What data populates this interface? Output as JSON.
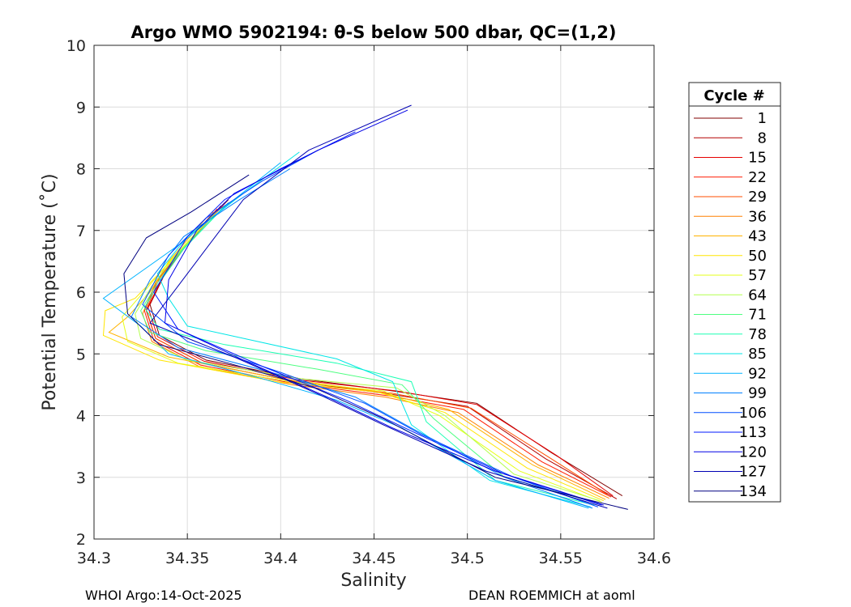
{
  "chart_data": {
    "type": "line",
    "title": "Argo WMO 5902194: θ-S below 500 dbar,  QC=(1,2)",
    "xlabel": "Salinity",
    "ylabel": "Potential Temperature (˚C)",
    "xlim": [
      34.3,
      34.6
    ],
    "ylim": [
      2,
      10
    ],
    "xticks": [
      "34.3",
      "34.35",
      "34.4",
      "34.45",
      "34.5",
      "34.55",
      "34.6"
    ],
    "yticks": [
      "2",
      "3",
      "4",
      "5",
      "6",
      "7",
      "8",
      "9",
      "10"
    ],
    "grid": true,
    "legend": {
      "title": "Cycle #",
      "placement": "right",
      "entries": [
        {
          "label": "1",
          "color": "#800000"
        },
        {
          "label": "8",
          "color": "#b30000"
        },
        {
          "label": "15",
          "color": "#e60000"
        },
        {
          "label": "22",
          "color": "#ff1a00"
        },
        {
          "label": "29",
          "color": "#ff4d00"
        },
        {
          "label": "36",
          "color": "#ff8000"
        },
        {
          "label": "43",
          "color": "#ffb300"
        },
        {
          "label": "50",
          "color": "#ffe600"
        },
        {
          "label": "57",
          "color": "#e6ff1a"
        },
        {
          "label": "64",
          "color": "#b3ff4d"
        },
        {
          "label": "71",
          "color": "#4dff80"
        },
        {
          "label": "78",
          "color": "#1affb3"
        },
        {
          "label": "85",
          "color": "#00e6e6"
        },
        {
          "label": "92",
          "color": "#00b3ff"
        },
        {
          "label": "99",
          "color": "#0080ff"
        },
        {
          "label": "106",
          "color": "#004dff"
        },
        {
          "label": "113",
          "color": "#001aff"
        },
        {
          "label": "120",
          "color": "#0000e6"
        },
        {
          "label": "127",
          "color": "#0000b3"
        },
        {
          "label": "134",
          "color": "#000080"
        }
      ]
    },
    "series": [
      {
        "name": "1",
        "color": "#800000",
        "x": [
          34.372,
          34.35,
          34.338,
          34.33,
          34.335,
          34.36,
          34.41,
          34.46,
          34.505,
          34.545,
          34.583
        ],
        "y": [
          7.5,
          6.8,
          6.3,
          5.8,
          5.3,
          4.9,
          4.6,
          4.4,
          4.2,
          3.4,
          2.7
        ]
      },
      {
        "name": "8",
        "color": "#b30000",
        "x": [
          34.368,
          34.348,
          34.336,
          34.328,
          34.333,
          34.358,
          34.408,
          34.458,
          34.5,
          34.542,
          34.58
        ],
        "y": [
          7.4,
          6.7,
          6.2,
          5.7,
          5.25,
          4.85,
          4.55,
          4.35,
          4.15,
          3.3,
          2.65
        ]
      },
      {
        "name": "15",
        "color": "#e60000",
        "x": [
          34.37,
          34.349,
          34.337,
          34.329,
          34.334,
          34.359,
          34.409,
          34.462,
          34.505,
          34.548,
          34.578
        ],
        "y": [
          7.45,
          6.75,
          6.25,
          5.75,
          5.28,
          4.88,
          4.58,
          4.4,
          4.18,
          3.35,
          2.7
        ]
      },
      {
        "name": "22",
        "color": "#ff1a00",
        "x": [
          34.366,
          34.346,
          34.334,
          34.327,
          34.332,
          34.357,
          34.407,
          34.458,
          34.498,
          34.54,
          34.577
        ],
        "y": [
          7.35,
          6.65,
          6.2,
          5.7,
          5.22,
          4.82,
          4.52,
          4.32,
          4.1,
          3.25,
          2.68
        ]
      },
      {
        "name": "29",
        "color": "#ff4d00",
        "x": [
          34.369,
          34.347,
          34.335,
          34.328,
          34.333,
          34.358,
          34.408,
          34.46,
          34.502,
          34.545,
          34.575
        ],
        "y": [
          7.4,
          6.7,
          6.22,
          5.72,
          5.25,
          4.85,
          4.55,
          4.36,
          4.12,
          3.3,
          2.72
        ]
      },
      {
        "name": "36",
        "color": "#ff8000",
        "x": [
          34.364,
          34.345,
          34.333,
          34.326,
          34.331,
          34.356,
          34.406,
          34.456,
          34.495,
          34.538,
          34.576
        ],
        "y": [
          7.3,
          6.6,
          6.15,
          5.65,
          5.2,
          4.8,
          4.5,
          4.3,
          4.05,
          3.2,
          2.66
        ]
      },
      {
        "name": "43",
        "color": "#ffb300",
        "x": [
          34.36,
          34.34,
          34.33,
          34.318,
          34.308,
          34.34,
          34.4,
          34.45,
          34.49,
          34.535,
          34.574
        ],
        "y": [
          7.2,
          6.5,
          6.0,
          5.6,
          5.35,
          4.95,
          4.6,
          4.4,
          4.1,
          3.2,
          2.64
        ]
      },
      {
        "name": "50",
        "color": "#ffe600",
        "x": [
          34.362,
          34.338,
          34.322,
          34.306,
          34.305,
          34.335,
          34.398,
          34.452,
          34.488,
          34.532,
          34.573
        ],
        "y": [
          7.2,
          6.4,
          5.9,
          5.7,
          5.3,
          4.9,
          4.55,
          4.38,
          4.05,
          3.15,
          2.62
        ]
      },
      {
        "name": "57",
        "color": "#e6ff1a",
        "x": [
          34.365,
          34.342,
          34.328,
          34.315,
          34.318,
          34.345,
          34.405,
          34.455,
          34.485,
          34.528,
          34.572
        ],
        "y": [
          7.3,
          6.55,
          6.05,
          5.6,
          5.2,
          4.85,
          4.55,
          4.4,
          4.0,
          3.1,
          2.6
        ]
      },
      {
        "name": "64",
        "color": "#b3ff4d",
        "x": [
          34.367,
          34.344,
          34.331,
          34.322,
          34.325,
          34.35,
          34.41,
          34.462,
          34.488,
          34.525,
          34.571
        ],
        "y": [
          7.35,
          6.6,
          6.1,
          5.65,
          5.25,
          4.9,
          4.6,
          4.45,
          4.0,
          3.05,
          2.62
        ]
      },
      {
        "name": "71",
        "color": "#4dff80",
        "x": [
          34.37,
          34.346,
          34.334,
          34.325,
          34.33,
          34.36,
          34.42,
          34.465,
          34.482,
          34.52,
          34.57
        ],
        "y": [
          7.4,
          6.65,
          6.15,
          5.7,
          5.35,
          5.05,
          4.75,
          4.5,
          3.95,
          3.0,
          2.58
        ]
      },
      {
        "name": "78",
        "color": "#1affb3",
        "x": [
          34.372,
          34.348,
          34.336,
          34.327,
          34.335,
          34.37,
          34.43,
          34.47,
          34.478,
          34.515,
          34.568
        ],
        "y": [
          7.45,
          6.7,
          6.2,
          5.75,
          5.4,
          5.15,
          4.85,
          4.55,
          3.9,
          2.95,
          2.55
        ]
      },
      {
        "name": "85",
        "color": "#00e6e6",
        "x": [
          34.41,
          34.38,
          34.35,
          34.334,
          34.34,
          34.35,
          34.43,
          34.46,
          34.47,
          34.512,
          34.566
        ],
        "y": [
          8.27,
          7.6,
          6.9,
          6.3,
          5.9,
          5.45,
          4.92,
          4.55,
          3.85,
          2.95,
          2.52
        ]
      },
      {
        "name": "92",
        "color": "#00b3ff",
        "x": [
          34.4,
          34.375,
          34.347,
          34.305,
          34.325,
          34.34,
          34.39,
          34.43,
          34.465,
          34.515,
          34.565
        ],
        "y": [
          8.1,
          7.5,
          6.8,
          5.9,
          5.45,
          5.0,
          4.6,
          4.25,
          3.8,
          2.95,
          2.5
        ]
      },
      {
        "name": "99",
        "color": "#0080ff",
        "x": [
          34.405,
          34.378,
          34.348,
          34.33,
          34.32,
          34.345,
          34.395,
          34.44,
          34.47,
          34.52,
          34.567
        ],
        "y": [
          8.0,
          7.5,
          6.9,
          6.2,
          5.6,
          5.1,
          4.7,
          4.3,
          3.8,
          3.0,
          2.5
        ]
      },
      {
        "name": "106",
        "color": "#004dff",
        "x": [
          34.42,
          34.39,
          34.36,
          34.34,
          34.326,
          34.35,
          34.4,
          34.445,
          34.475,
          34.525,
          34.57
        ],
        "y": [
          8.3,
          7.8,
          7.2,
          6.6,
          5.8,
          5.2,
          4.7,
          4.2,
          3.7,
          3.0,
          2.52
        ]
      },
      {
        "name": "113",
        "color": "#001aff",
        "x": [
          34.44,
          34.4,
          34.37,
          34.35,
          34.332,
          34.345,
          34.39,
          34.435,
          34.47,
          34.52,
          34.572
        ],
        "y": [
          8.6,
          8.0,
          7.5,
          6.9,
          6.0,
          5.4,
          4.8,
          4.25,
          3.75,
          3.05,
          2.55
        ]
      },
      {
        "name": "120",
        "color": "#0000e6",
        "x": [
          34.468,
          34.42,
          34.375,
          34.355,
          34.34,
          34.338,
          34.38,
          34.425,
          34.46,
          34.515,
          34.573
        ],
        "y": [
          8.95,
          8.3,
          7.6,
          7.0,
          6.2,
          5.5,
          4.9,
          4.3,
          3.8,
          3.1,
          2.55
        ]
      },
      {
        "name": "127",
        "color": "#0000b3",
        "x": [
          34.47,
          34.415,
          34.38,
          34.36,
          34.345,
          34.33,
          34.375,
          34.42,
          34.455,
          34.51,
          34.575
        ],
        "y": [
          9.03,
          8.3,
          7.5,
          6.7,
          6.1,
          5.5,
          4.95,
          4.35,
          3.85,
          3.1,
          2.5
        ]
      },
      {
        "name": "134",
        "color": "#000080",
        "x": [
          34.383,
          34.352,
          34.328,
          34.316,
          34.318,
          34.335,
          34.372,
          34.418,
          34.455,
          34.515,
          34.586
        ],
        "y": [
          7.9,
          7.3,
          6.88,
          6.3,
          5.65,
          5.15,
          4.85,
          4.45,
          3.95,
          3.0,
          2.48
        ]
      }
    ]
  },
  "footer": {
    "left": "WHOI Argo:14-Oct-2025",
    "right": "DEAN ROEMMICH at aoml"
  }
}
